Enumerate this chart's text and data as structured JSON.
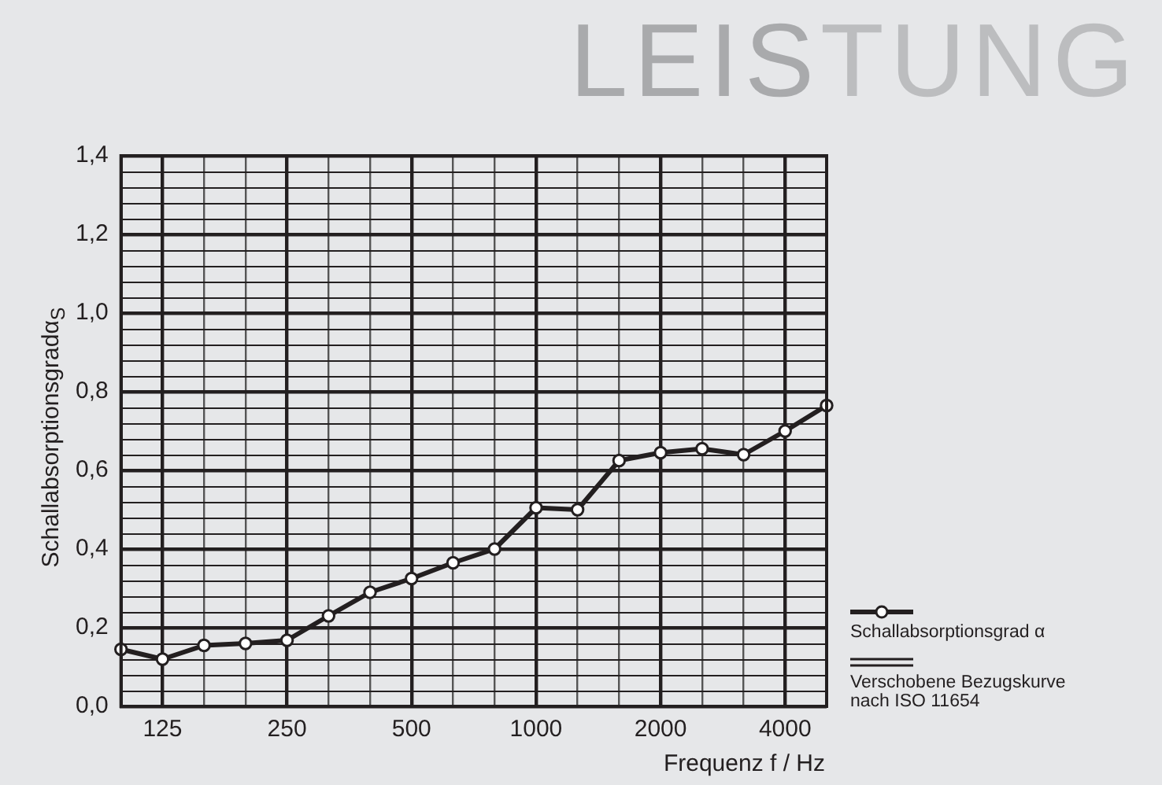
{
  "chart_data": {
    "type": "line",
    "title": "LEISTUNG",
    "xlabel": "Frequenz f / Hz",
    "ylabel": "Schallabsorptionsgradα$_{S}$",
    "categories": [
      null,
      "125",
      null,
      null,
      "250",
      null,
      null,
      "500",
      null,
      null,
      "1000",
      null,
      null,
      "2000",
      null,
      null,
      "4000",
      null
    ],
    "series": [
      {
        "name": "Schallabsorptionsgrad α",
        "color": "#231f20",
        "marker": "circle",
        "values": [
          0.145,
          0.12,
          0.155,
          0.16,
          0.168,
          0.23,
          0.29,
          0.325,
          0.365,
          0.4,
          0.505,
          0.5,
          0.625,
          0.645,
          0.655,
          0.64,
          0.7,
          0.765
        ]
      },
      {
        "name": "Verschobene Bezugskurve nach ISO 11654",
        "color": "#231f20",
        "marker": "none",
        "values": [
          null,
          null,
          null,
          null,
          null,
          null,
          null,
          null,
          null,
          null,
          null,
          null,
          null,
          null,
          null,
          null,
          null,
          null
        ]
      }
    ],
    "ylim": [
      0,
      1.4
    ],
    "yticks": [
      {
        "value": 0,
        "label": "0,0"
      },
      {
        "value": 0.2,
        "label": "0,2"
      },
      {
        "value": 0.4,
        "label": "0,4"
      },
      {
        "value": 0.6,
        "label": "0,6"
      },
      {
        "value": 0.8,
        "label": "0,8"
      },
      {
        "value": 1.0,
        "label": "1,0"
      },
      {
        "value": 1.2,
        "label": "1,2"
      },
      {
        "value": 1.4,
        "label": "1,4"
      }
    ],
    "grid": true,
    "legend": "right"
  }
}
